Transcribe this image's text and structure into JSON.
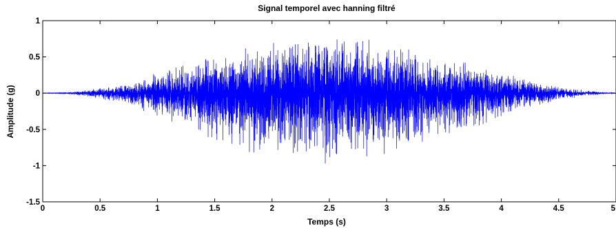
{
  "chart_data": {
    "type": "line",
    "title": "Signal temporel avec hanning filtré",
    "xlabel": "Temps (s)",
    "ylabel": "Amplitude (g)",
    "xlim": [
      0,
      5
    ],
    "ylim": [
      -1.5,
      1
    ],
    "xticks": [
      0,
      0.5,
      1,
      1.5,
      2,
      2.5,
      3,
      3.5,
      4,
      4.5,
      5
    ],
    "xtick_labels": [
      "0",
      "0.5",
      "1",
      "1.5",
      "2",
      "2.5",
      "3",
      "3.5",
      "4",
      "4.5",
      "5"
    ],
    "yticks": [
      -1.5,
      -1,
      -0.5,
      0,
      0.5,
      1
    ],
    "ytick_labels": [
      "-1.5",
      "-1",
      "-0.5",
      "0",
      "0.5",
      "1"
    ],
    "grid": false,
    "series": [
      {
        "color": "#0000ff",
        "envelope": {
          "t": [
            0,
            0.25,
            0.5,
            0.75,
            1,
            1.25,
            1.5,
            1.75,
            2,
            2.25,
            2.5,
            2.75,
            3,
            3.25,
            3.5,
            3.75,
            4,
            4.25,
            4.5,
            4.75,
            5
          ],
          "upper": [
            0.0,
            0.02,
            0.08,
            0.14,
            0.3,
            0.42,
            0.55,
            0.65,
            0.75,
            0.8,
            0.9,
            0.85,
            0.72,
            0.63,
            0.55,
            0.42,
            0.3,
            0.2,
            0.1,
            0.04,
            0.0
          ],
          "lower": [
            0.0,
            -0.02,
            -0.08,
            -0.15,
            -0.38,
            -0.5,
            -0.7,
            -0.82,
            -0.95,
            -1.0,
            -1.07,
            -1.0,
            -0.85,
            -0.78,
            -0.65,
            -0.52,
            -0.35,
            -0.22,
            -0.12,
            -0.04,
            0.0
          ]
        }
      }
    ]
  }
}
